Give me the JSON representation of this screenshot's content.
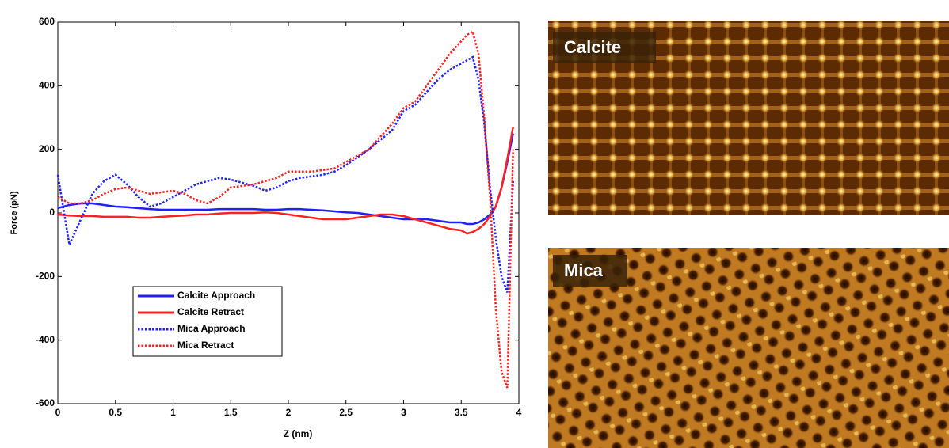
{
  "chart_data": {
    "type": "line",
    "xlabel": "Z (nm)",
    "ylabel": "Force (pN)",
    "x": [
      0,
      0.1,
      0.2,
      0.3,
      0.4,
      0.5,
      0.6,
      0.7,
      0.8,
      0.9,
      1,
      1.1,
      1.2,
      1.3,
      1.4,
      1.5,
      1.6,
      1.7,
      1.8,
      1.9,
      2,
      2.1,
      2.2,
      2.3,
      2.4,
      2.5,
      2.6,
      2.7,
      2.8,
      2.9,
      3,
      3.1,
      3.2,
      3.3,
      3.4,
      3.5,
      3.55,
      3.6,
      3.65,
      3.7,
      3.75,
      3.8,
      3.85,
      3.9,
      3.95
    ],
    "series": [
      {
        "name": "Calcite Approach",
        "color": "#1f1fff",
        "style": "solid",
        "values": [
          15,
          25,
          30,
          30,
          25,
          20,
          18,
          15,
          12,
          10,
          10,
          10,
          10,
          10,
          12,
          12,
          12,
          12,
          10,
          10,
          12,
          12,
          10,
          8,
          5,
          2,
          0,
          -5,
          -10,
          -15,
          -20,
          -20,
          -20,
          -25,
          -30,
          -30,
          -35,
          -35,
          -30,
          -20,
          -5,
          20,
          80,
          160,
          250
        ]
      },
      {
        "name": "Calcite Retract",
        "color": "#ff2020",
        "style": "solid",
        "values": [
          -5,
          -8,
          -10,
          -10,
          -12,
          -12,
          -12,
          -15,
          -15,
          -12,
          -10,
          -8,
          -5,
          -5,
          -2,
          0,
          0,
          0,
          2,
          0,
          -5,
          -10,
          -15,
          -20,
          -20,
          -20,
          -15,
          -10,
          -5,
          -5,
          -10,
          -20,
          -30,
          -40,
          -50,
          -55,
          -65,
          -60,
          -50,
          -35,
          -10,
          20,
          80,
          170,
          270
        ]
      },
      {
        "name": "Mica Approach",
        "color": "#1f1fff",
        "style": "dotted",
        "values": [
          120,
          -100,
          -20,
          60,
          100,
          120,
          90,
          50,
          20,
          30,
          50,
          70,
          90,
          100,
          110,
          105,
          95,
          85,
          70,
          80,
          100,
          110,
          115,
          120,
          130,
          150,
          175,
          200,
          230,
          260,
          320,
          340,
          380,
          420,
          450,
          470,
          480,
          490,
          420,
          280,
          80,
          -80,
          -200,
          -250,
          100
        ]
      },
      {
        "name": "Mica Retract",
        "color": "#ff2020",
        "style": "dotted",
        "values": [
          50,
          30,
          30,
          40,
          60,
          75,
          80,
          70,
          60,
          65,
          70,
          60,
          40,
          30,
          50,
          80,
          85,
          90,
          100,
          110,
          130,
          130,
          130,
          135,
          140,
          160,
          180,
          200,
          240,
          280,
          330,
          350,
          400,
          450,
          500,
          540,
          560,
          570,
          500,
          300,
          50,
          -300,
          -500,
          -550,
          200
        ]
      }
    ],
    "xlim": [
      0,
      4
    ],
    "xticks": [
      0,
      0.5,
      1,
      1.5,
      2,
      2.5,
      3,
      3.5,
      4
    ],
    "ylim": [
      -600,
      600
    ],
    "yticks": [
      -600,
      -400,
      -200,
      0,
      200,
      400,
      600
    ],
    "grid": false,
    "legend": "lower left"
  },
  "panels": [
    {
      "label": "Calcite"
    },
    {
      "label": "Mica"
    }
  ]
}
